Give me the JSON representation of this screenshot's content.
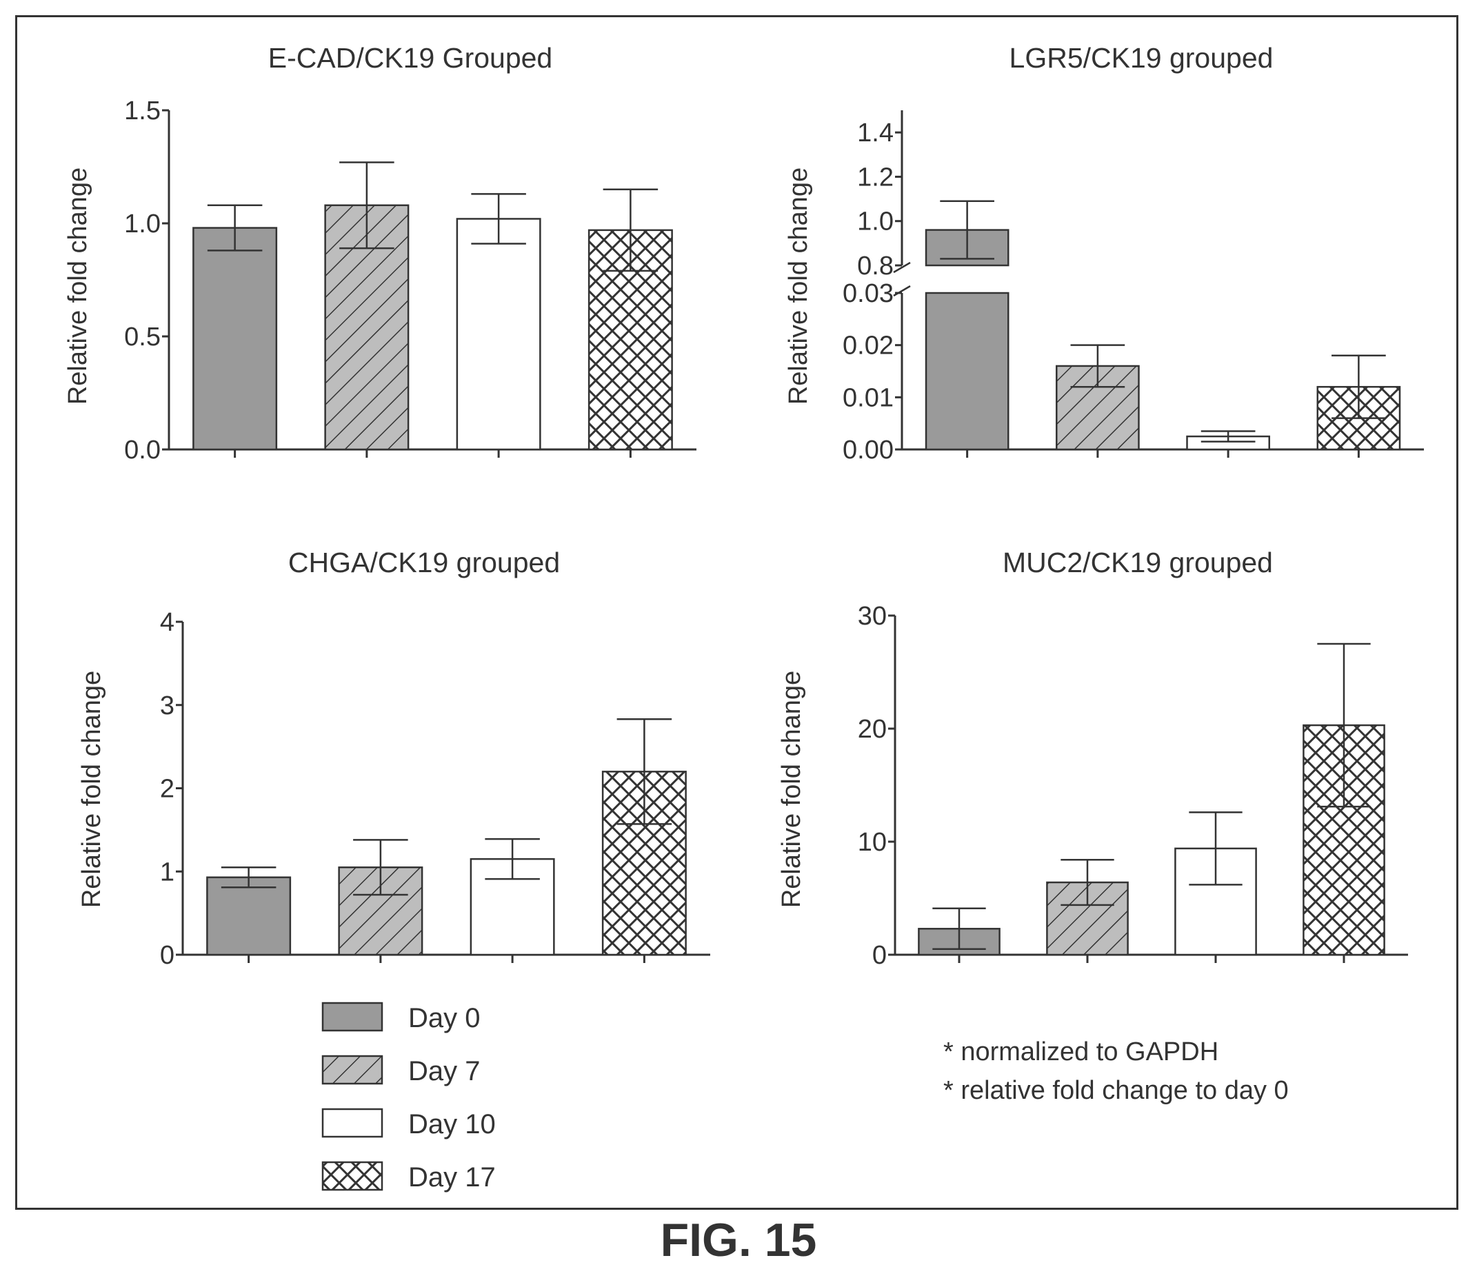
{
  "figure_caption": "FIG. 15",
  "legend": [
    {
      "label": "Day 0",
      "pattern": "solid-gray"
    },
    {
      "label": "Day 7",
      "pattern": "diagonal-hatch"
    },
    {
      "label": "Day 10",
      "pattern": "white"
    },
    {
      "label": "Day 17",
      "pattern": "crosshatch"
    }
  ],
  "notes": [
    "* normalized to GAPDH",
    "* relative fold change to day 0"
  ],
  "colors": {
    "ink": "#333333",
    "day0_fill": "#9a9a9a",
    "hatch_bg": "#bdbdbd",
    "white": "#ffffff"
  },
  "chart_data": [
    {
      "type": "bar",
      "title": "E-CAD/CK19 Grouped",
      "ylabel": "Relative fold change",
      "categories": [
        "Day 0",
        "Day 7",
        "Day 10",
        "Day 17"
      ],
      "values": [
        0.98,
        1.08,
        1.02,
        0.97
      ],
      "errors": [
        0.1,
        0.19,
        0.11,
        0.18
      ],
      "ylim": [
        0,
        1.5
      ],
      "yticks": [
        0.0,
        0.5,
        1.0,
        1.5
      ],
      "ytick_labels": [
        "0.0",
        "0.5",
        "1.0",
        "1.5"
      ]
    },
    {
      "type": "bar",
      "title": "LGR5/CK19 grouped",
      "ylabel": "Relative fold change",
      "categories": [
        "Day 0",
        "Day 7",
        "Day 10",
        "Day 17"
      ],
      "values": [
        0.96,
        0.016,
        0.0025,
        0.012
      ],
      "errors": [
        0.13,
        0.004,
        0.001,
        0.006
      ],
      "broken_axis": {
        "lower": {
          "range": [
            0,
            0.03
          ],
          "ticks": [
            0.0,
            0.01,
            0.02,
            0.03
          ],
          "labels": [
            "0.00",
            "0.01",
            "0.02",
            "0.03"
          ]
        },
        "upper": {
          "range": [
            0.8,
            1.5
          ],
          "ticks": [
            0.8,
            1.0,
            1.2,
            1.4
          ],
          "labels": [
            "0.8",
            "1.0",
            "1.2",
            "1.4"
          ]
        }
      }
    },
    {
      "type": "bar",
      "title": "CHGA/CK19 grouped",
      "ylabel": "Relative fold change",
      "categories": [
        "Day 0",
        "Day 7",
        "Day 10",
        "Day 17"
      ],
      "values": [
        0.93,
        1.05,
        1.15,
        2.2
      ],
      "errors": [
        0.12,
        0.33,
        0.24,
        0.63
      ],
      "ylim": [
        0,
        4
      ],
      "yticks": [
        0,
        1,
        2,
        3,
        4
      ],
      "ytick_labels": [
        "0",
        "1",
        "2",
        "3",
        "4"
      ]
    },
    {
      "type": "bar",
      "title": "MUC2/CK19 grouped",
      "ylabel": "Relative fold change",
      "categories": [
        "Day 0",
        "Day 7",
        "Day 10",
        "Day 17"
      ],
      "values": [
        2.3,
        6.4,
        9.4,
        20.3
      ],
      "errors": [
        1.8,
        2.0,
        3.2,
        7.2
      ],
      "ylim": [
        0,
        30
      ],
      "yticks": [
        0,
        10,
        20,
        30
      ],
      "ytick_labels": [
        "0",
        "10",
        "20",
        "30"
      ]
    }
  ]
}
